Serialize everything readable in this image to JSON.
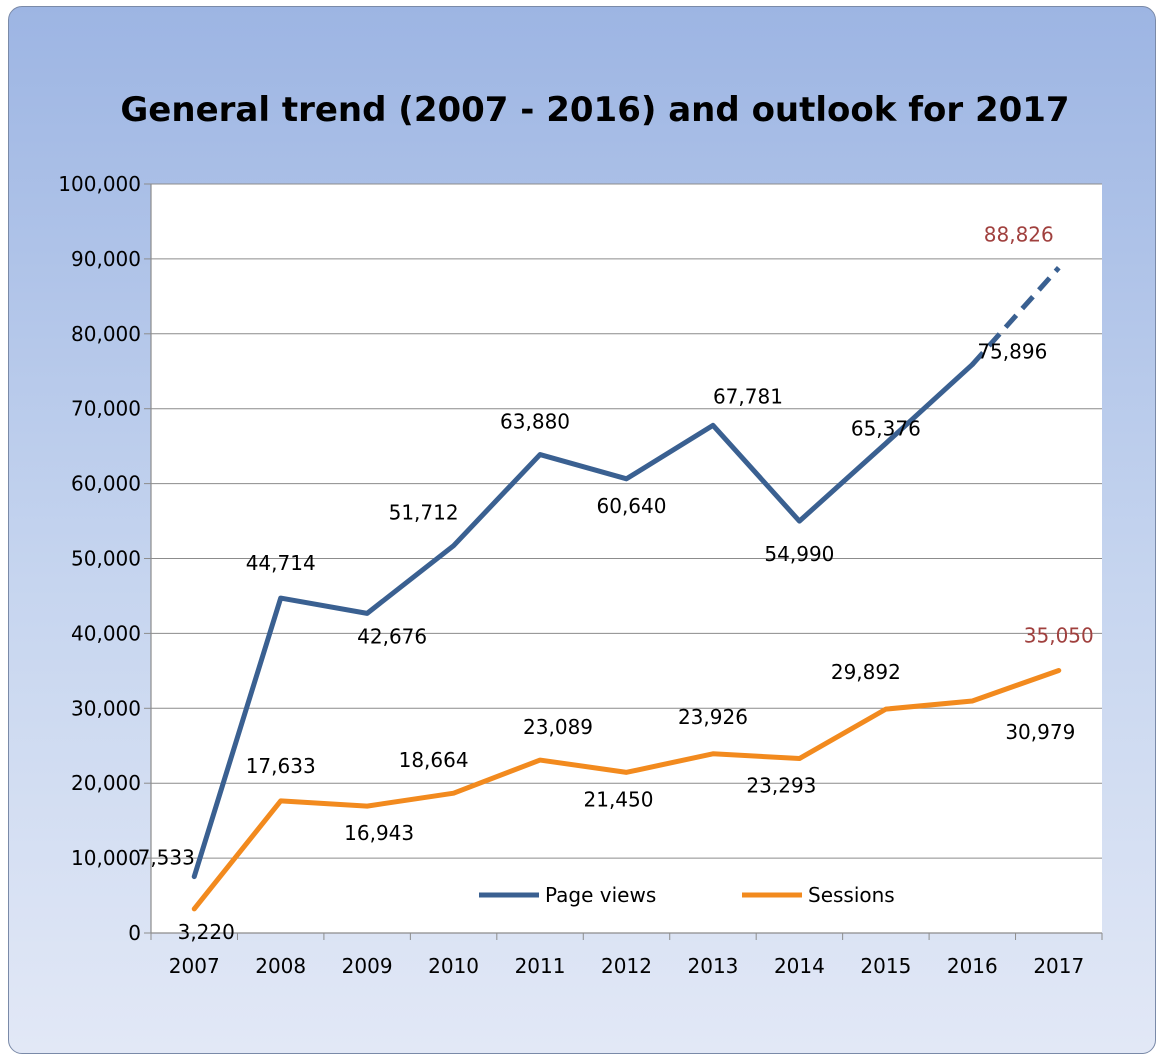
{
  "chart_data": {
    "type": "line",
    "title": "General trend (2007 - 2016) and outlook for 2017",
    "categories": [
      "2007",
      "2008",
      "2009",
      "2010",
      "2011",
      "2012",
      "2013",
      "2014",
      "2015",
      "2016",
      "2017"
    ],
    "ylim": [
      0,
      100000
    ],
    "yticks": [
      "0",
      "10,000",
      "20,000",
      "30,000",
      "40,000",
      "50,000",
      "60,000",
      "70,000",
      "80,000",
      "90,000",
      "100,000"
    ],
    "grid": true,
    "legend_position": "bottom-inside",
    "series": [
      {
        "name": "Page views",
        "color": "#3a6091",
        "values": [
          7533,
          44714,
          42676,
          51712,
          63880,
          60640,
          67781,
          54990,
          65376,
          75896,
          88826
        ],
        "labels": [
          "7,533",
          "44,714",
          "42,676",
          "51,712",
          "63,880",
          "60,640",
          "67,781",
          "54,990",
          "65,376",
          "75,896",
          "88,826"
        ],
        "forecast_from_index": 9
      },
      {
        "name": "Sessions",
        "color": "#f28a1e",
        "values": [
          3220,
          17633,
          16943,
          18664,
          23089,
          21450,
          23926,
          23293,
          29892,
          30979,
          35050
        ],
        "labels": [
          "3,220",
          "17,633",
          "16,943",
          "18,664",
          "23,089",
          "21,450",
          "23,926",
          "23,293",
          "29,892",
          "30,979",
          "35,050"
        ],
        "forecast_from_index": 10
      }
    ],
    "forecast_label_color": "#a0403e"
  }
}
